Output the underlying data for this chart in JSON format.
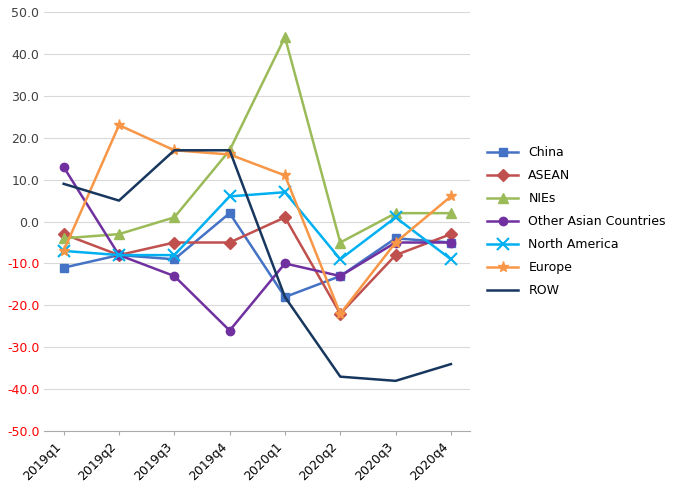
{
  "categories": [
    "2019q1",
    "2019q2",
    "2019q3",
    "2019q4",
    "2020q1",
    "2020q2",
    "2020q3",
    "2020q4"
  ],
  "series": [
    {
      "name": "China",
      "values": [
        -11,
        -8,
        -9,
        2,
        -18,
        -13,
        -4,
        -5
      ],
      "color": "#4472C4",
      "marker": "s",
      "markersize": 6
    },
    {
      "name": "ASEAN",
      "values": [
        -3,
        -8,
        -5,
        -5,
        1,
        -22,
        -8,
        -3
      ],
      "color": "#C0504D",
      "marker": "D",
      "markersize": 6
    },
    {
      "name": "NIEs",
      "values": [
        -4,
        -3,
        1,
        17,
        44,
        -5,
        2,
        2
      ],
      "color": "#9BBB59",
      "marker": "^",
      "markersize": 7
    },
    {
      "name": "Other Asian Countries",
      "values": [
        13,
        -8,
        -13,
        -26,
        -10,
        -13,
        -5,
        -5
      ],
      "color": "#7030A0",
      "marker": "o",
      "markersize": 6
    },
    {
      "name": "North America",
      "values": [
        -7,
        -8,
        -8,
        6,
        7,
        -9,
        1,
        -9
      ],
      "color": "#00B0F0",
      "marker": "x",
      "markersize": 8
    },
    {
      "name": "Europe",
      "values": [
        -7,
        23,
        17,
        16,
        11,
        -22,
        -5,
        6
      ],
      "color": "#F79646",
      "marker": "*",
      "markersize": 8
    },
    {
      "name": "ROW",
      "values": [
        9,
        5,
        17,
        17,
        -18,
        -37,
        -38,
        -34
      ],
      "color": "#17375E",
      "marker": null,
      "markersize": 0
    }
  ],
  "ylim": [
    -50,
    50
  ],
  "yticks": [
    -50,
    -40,
    -30,
    -20,
    -10,
    0,
    10,
    20,
    30,
    40,
    50
  ],
  "grid_color": "#D9D9D9",
  "positive_tick_color": "#404040",
  "negative_tick_color": "#FF0000",
  "figsize": [
    6.8,
    4.9
  ],
  "dpi": 100,
  "linewidth": 1.8,
  "legend_fontsize": 9,
  "tick_fontsize": 9
}
